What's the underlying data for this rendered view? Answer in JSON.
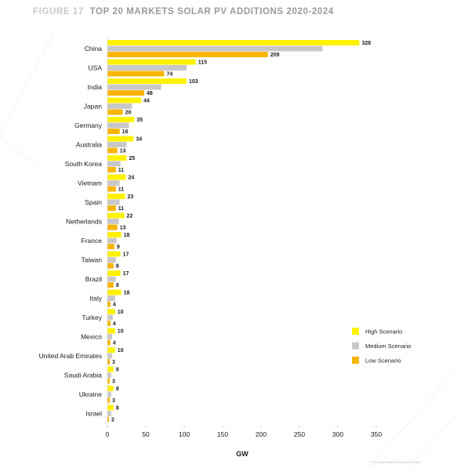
{
  "figure": {
    "number": "FIGURE 17",
    "title": "TOP 20 MARKETS SOLAR PV ADDITIONS 2020-2024",
    "number_color": "#c8c8c8",
    "title_color": "#9a9a9a"
  },
  "footer": {
    "note": "© SOLARPOWER EUROPE 2020"
  },
  "chart_data": {
    "type": "bar",
    "orientation": "horizontal",
    "title": "",
    "xlabel": "GW",
    "ylabel": "",
    "xlim": [
      0,
      350
    ],
    "xticks": [
      0,
      50,
      100,
      150,
      200,
      250,
      300,
      350
    ],
    "grid": false,
    "legend_position": "right",
    "categories": [
      "China",
      "USA",
      "India",
      "Japan",
      "Germany",
      "Australia",
      "South Korea",
      "Vietnam",
      "Spain",
      "Netherlands",
      "France",
      "Taiwan",
      "Brazil",
      "Italy",
      "Turkey",
      "Mexico",
      "United Arab Emirates",
      "Saudi Arabia",
      "Ukraine",
      "Israel"
    ],
    "series": [
      {
        "name": "High Scenario",
        "color": "#fff200",
        "labeled": true,
        "values": [
          328,
          115,
          103,
          44,
          35,
          34,
          25,
          24,
          23,
          22,
          18,
          17,
          17,
          18,
          10,
          10,
          10,
          8,
          8,
          8
        ]
      },
      {
        "name": "Medium Scenario",
        "color": "#c8c8c8",
        "labeled": false,
        "values": [
          280,
          103,
          70,
          32,
          28,
          25,
          17,
          16,
          16,
          15,
          12,
          11,
          11,
          10,
          7,
          6,
          6,
          5,
          5,
          5
        ]
      },
      {
        "name": "Low Scenario",
        "color": "#f7b500",
        "labeled": true,
        "values": [
          209,
          74,
          48,
          20,
          16,
          13,
          11,
          11,
          11,
          13,
          9,
          8,
          8,
          4,
          4,
          4,
          3,
          3,
          3,
          2
        ]
      }
    ]
  }
}
